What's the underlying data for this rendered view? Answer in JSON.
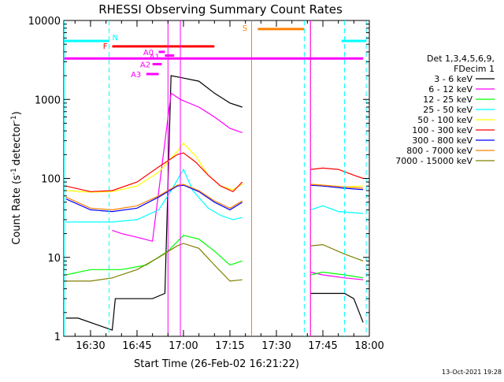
{
  "chart_data": {
    "type": "line",
    "title": "RHESSI Observing Summary Count Rates",
    "xlabel": "Start Time (26-Feb-02 16:21:22)",
    "ylabel": "Count Rate (s",
    "ylabel_sup": "-1",
    "ylabel_rest": "detector",
    "ylabel_end": ")",
    "y_scale": "log",
    "ylim": [
      1,
      10000
    ],
    "xlim": [
      "16:21:22",
      "18:00"
    ],
    "x_ticks": [
      "16:30",
      "16:45",
      "17:00",
      "17:15",
      "17:30",
      "17:45",
      "18:00"
    ],
    "y_ticks": [
      "1",
      "10",
      "100",
      "1000",
      "10000"
    ],
    "legend_header": [
      "Det 1,3,4,5,6,9,",
      "FDecim 1"
    ],
    "legend_position": "right",
    "series": [
      {
        "name": "3 - 6 keV",
        "color": "#000000",
        "points": [
          [
            "16:22",
            1.7
          ],
          [
            "16:26",
            1.7
          ],
          [
            "16:37",
            1.2
          ],
          [
            "16:38",
            3.0
          ],
          [
            "16:45",
            3.0
          ],
          [
            "16:50",
            3.0
          ],
          [
            "16:54",
            3.5
          ],
          [
            "16:56",
            2000
          ],
          [
            "16:59",
            1900
          ],
          [
            "17:05",
            1700
          ],
          [
            "17:10",
            1200
          ],
          [
            "17:15",
            900
          ],
          [
            "17:19",
            800
          ],
          [
            "17:41",
            3.5
          ],
          [
            "17:45",
            3.5
          ],
          [
            "17:52",
            3.5
          ],
          [
            "17:55",
            3.0
          ],
          [
            "17:58",
            1.5
          ]
        ]
      },
      {
        "name": "6 - 12 keV",
        "color": "#ff00ff",
        "points": [
          [
            "16:37",
            22
          ],
          [
            "16:40",
            20
          ],
          [
            "16:45",
            18
          ],
          [
            "16:50",
            16
          ],
          [
            "16:56",
            1200
          ],
          [
            "16:59",
            1000
          ],
          [
            "17:05",
            800
          ],
          [
            "17:10",
            600
          ],
          [
            "17:15",
            430
          ],
          [
            "17:19",
            380
          ],
          [
            "17:41",
            6.5
          ],
          [
            "17:45",
            6.0
          ],
          [
            "17:52",
            5.5
          ],
          [
            "17:58",
            5.2
          ]
        ]
      },
      {
        "name": "12 - 25 keV",
        "color": "#00ff00",
        "points": [
          [
            "16:22",
            6
          ],
          [
            "16:30",
            7
          ],
          [
            "16:40",
            7
          ],
          [
            "16:48",
            8
          ],
          [
            "16:55",
            12
          ],
          [
            "17:00",
            19
          ],
          [
            "17:05",
            17
          ],
          [
            "17:10",
            12
          ],
          [
            "17:15",
            8
          ],
          [
            "17:19",
            9
          ],
          [
            "17:41",
            6
          ],
          [
            "17:45",
            6.5
          ],
          [
            "17:52",
            6
          ],
          [
            "17:58",
            5.5
          ]
        ]
      },
      {
        "name": "25 - 50 keV",
        "color": "#00ffff",
        "points": [
          [
            "16:22",
            28
          ],
          [
            "16:30",
            28
          ],
          [
            "16:37",
            28
          ],
          [
            "16:45",
            30
          ],
          [
            "16:52",
            40
          ],
          [
            "16:56",
            70
          ],
          [
            "17:00",
            130
          ],
          [
            "17:03",
            70
          ],
          [
            "17:08",
            42
          ],
          [
            "17:12",
            34
          ],
          [
            "17:16",
            30
          ],
          [
            "17:19",
            32
          ],
          [
            "17:41",
            40
          ],
          [
            "17:45",
            45
          ],
          [
            "17:50",
            38
          ],
          [
            "17:58",
            36
          ]
        ]
      },
      {
        "name": "50 - 100 keV",
        "color": "#ffff00",
        "points": [
          [
            "16:22",
            70
          ],
          [
            "16:30",
            67
          ],
          [
            "16:37",
            68
          ],
          [
            "16:45",
            80
          ],
          [
            "16:52",
            120
          ],
          [
            "16:58",
            220
          ],
          [
            "17:00",
            280
          ],
          [
            "17:04",
            190
          ],
          [
            "17:08",
            110
          ],
          [
            "17:12",
            80
          ],
          [
            "17:16",
            72
          ],
          [
            "17:19",
            85
          ],
          [
            "17:41",
            85
          ],
          [
            "17:45",
            82
          ],
          [
            "17:52",
            78
          ],
          [
            "17:58",
            80
          ]
        ]
      },
      {
        "name": "100 - 300 keV",
        "color": "#ff0000",
        "points": [
          [
            "16:22",
            80
          ],
          [
            "16:30",
            68
          ],
          [
            "16:37",
            70
          ],
          [
            "16:45",
            90
          ],
          [
            "16:52",
            140
          ],
          [
            "16:58",
            200
          ],
          [
            "17:00",
            210
          ],
          [
            "17:04",
            160
          ],
          [
            "17:08",
            110
          ],
          [
            "17:12",
            80
          ],
          [
            "17:16",
            68
          ],
          [
            "17:19",
            90
          ],
          [
            "17:41",
            130
          ],
          [
            "17:45",
            135
          ],
          [
            "17:50",
            130
          ],
          [
            "17:55",
            110
          ],
          [
            "17:58",
            100
          ]
        ]
      },
      {
        "name": "300 - 800 keV",
        "color": "#0000ff",
        "points": [
          [
            "16:22",
            55
          ],
          [
            "16:30",
            40
          ],
          [
            "16:37",
            38
          ],
          [
            "16:45",
            42
          ],
          [
            "16:52",
            58
          ],
          [
            "16:58",
            80
          ],
          [
            "17:00",
            82
          ],
          [
            "17:05",
            68
          ],
          [
            "17:10",
            50
          ],
          [
            "17:15",
            40
          ],
          [
            "17:19",
            50
          ],
          [
            "17:41",
            82
          ],
          [
            "17:45",
            80
          ],
          [
            "17:52",
            75
          ],
          [
            "17:58",
            72
          ]
        ]
      },
      {
        "name": "800 - 7000 keV",
        "color": "#ff8000",
        "points": [
          [
            "16:22",
            58
          ],
          [
            "16:30",
            42
          ],
          [
            "16:37",
            40
          ],
          [
            "16:45",
            45
          ],
          [
            "16:52",
            60
          ],
          [
            "16:58",
            82
          ],
          [
            "17:00",
            84
          ],
          [
            "17:05",
            70
          ],
          [
            "17:10",
            52
          ],
          [
            "17:15",
            42
          ],
          [
            "17:19",
            52
          ],
          [
            "17:41",
            84
          ],
          [
            "17:45",
            82
          ],
          [
            "17:52",
            78
          ],
          [
            "17:58",
            75
          ]
        ]
      },
      {
        "name": "7000 - 15000 keV",
        "color": "#808000",
        "points": [
          [
            "16:22",
            5
          ],
          [
            "16:30",
            5
          ],
          [
            "16:37",
            5.5
          ],
          [
            "16:45",
            7
          ],
          [
            "16:52",
            10
          ],
          [
            "16:58",
            14
          ],
          [
            "17:00",
            15
          ],
          [
            "17:05",
            13
          ],
          [
            "17:10",
            8
          ],
          [
            "17:15",
            5
          ],
          [
            "17:19",
            5.2
          ],
          [
            "17:41",
            14
          ],
          [
            "17:45",
            14.5
          ],
          [
            "17:52",
            11
          ],
          [
            "17:58",
            9
          ]
        ]
      }
    ],
    "annotations": {
      "N": {
        "label": "N",
        "color": "#00ffff"
      },
      "F": {
        "label": "F",
        "color": "#ff0000"
      },
      "S": {
        "label": "S",
        "color": "#ff8000"
      },
      "A0": {
        "label": "A0",
        "color": "#ff00ff"
      },
      "A1": {
        "label": "A1",
        "color": "#ff00ff"
      },
      "A2": {
        "label": "A2",
        "color": "#ff00ff"
      },
      "A3": {
        "label": "A3",
        "color": "#ff00ff"
      }
    }
  },
  "footer": {
    "timestamp": "13-Oct-2021 19:28"
  }
}
